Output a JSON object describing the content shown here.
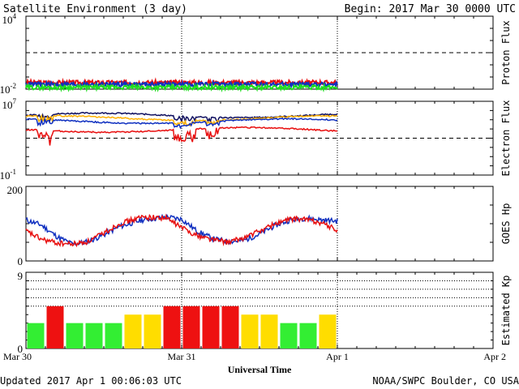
{
  "header": {
    "title": "Satellite Environment (3 day)",
    "begin": "Begin:  2017 Mar 30 0000 UTC"
  },
  "footer": {
    "updated": "Updated 2017 Apr  1 00:06:03 UTC",
    "source": "NOAA/SWPC Boulder, CO USA"
  },
  "colors": {
    "red": "#e81010",
    "blue": "#1030c0",
    "green": "#20e020",
    "orange": "#ffb000",
    "navy": "#101060",
    "kp_green": "#33ee33",
    "kp_yellow": "#ffdd00",
    "kp_red": "#ee1111"
  },
  "chart_data": [
    {
      "type": "line",
      "id": "proton",
      "ylabel": "Proton Flux",
      "ytick_labels": {
        "top": "10",
        "top_exp": "4",
        "bottom": "10",
        "bottom_exp": "-2"
      },
      "yscale": "log",
      "ylim": [
        0.01,
        10000
      ],
      "xlim_days": [
        0,
        3
      ],
      "data_end_day": 2.0,
      "threshold": 10,
      "series": [
        {
          "color": "red",
          "level": 0.035
        },
        {
          "color": "blue",
          "level": 0.025
        },
        {
          "color": "green",
          "level": 0.014
        }
      ]
    },
    {
      "type": "line",
      "id": "electron",
      "ylabel": "Electron Flux",
      "ytick_labels": {
        "top": "10",
        "top_exp": "7",
        "bottom": "10",
        "bottom_exp": "-1"
      },
      "yscale": "log",
      "ylim": [
        0.1,
        10000000
      ],
      "xlim_days": [
        0,
        3
      ],
      "data_end_day": 2.0,
      "threshold": 1000,
      "series": [
        {
          "color": "navy",
          "level": 300000
        },
        {
          "color": "orange",
          "level": 150000
        },
        {
          "color": "blue",
          "level": 70000
        },
        {
          "color": "red",
          "level": 8000
        }
      ]
    },
    {
      "type": "line",
      "id": "goes_hp",
      "ylabel": "GOES Hp",
      "ytick_labels": {
        "top": "200",
        "bottom": "0"
      },
      "ylim": [
        0,
        200
      ],
      "xlim_days": [
        0,
        3
      ],
      "data_end_day": 2.0,
      "series": [
        {
          "color": "blue",
          "points": [
            [
              0,
              110
            ],
            [
              0.1,
              96
            ],
            [
              0.2,
              65
            ],
            [
              0.3,
              45
            ],
            [
              0.4,
              52
            ],
            [
              0.5,
              70
            ],
            [
              0.6,
              92
            ],
            [
              0.75,
              110
            ],
            [
              0.9,
              118
            ],
            [
              1.0,
              112
            ],
            [
              1.1,
              80
            ],
            [
              1.2,
              60
            ],
            [
              1.3,
              52
            ],
            [
              1.4,
              55
            ],
            [
              1.5,
              72
            ],
            [
              1.6,
              95
            ],
            [
              1.7,
              110
            ],
            [
              1.8,
              115
            ],
            [
              1.9,
              110
            ],
            [
              2.0,
              107
            ]
          ]
        },
        {
          "color": "red",
          "points": [
            [
              0,
              80
            ],
            [
              0.1,
              58
            ],
            [
              0.2,
              48
            ],
            [
              0.3,
              45
            ],
            [
              0.4,
              52
            ],
            [
              0.5,
              75
            ],
            [
              0.6,
              100
            ],
            [
              0.75,
              118
            ],
            [
              0.9,
              115
            ],
            [
              1.0,
              90
            ],
            [
              1.1,
              68
            ],
            [
              1.2,
              58
            ],
            [
              1.3,
              50
            ],
            [
              1.4,
              62
            ],
            [
              1.5,
              80
            ],
            [
              1.6,
              100
            ],
            [
              1.7,
              112
            ],
            [
              1.8,
              112
            ],
            [
              1.9,
              102
            ],
            [
              2.0,
              82
            ]
          ]
        }
      ]
    },
    {
      "type": "bar",
      "id": "kp",
      "ylabel": "Estimated Kp",
      "ytick_labels": {
        "top": "9",
        "bottom": "0"
      },
      "ylim": [
        0,
        9
      ],
      "xlim_days": [
        0,
        3
      ],
      "bar_width_hours": 3,
      "values": [
        3,
        5,
        3,
        3,
        3,
        4,
        4,
        5,
        5,
        5,
        5,
        4,
        4,
        3,
        3,
        4
      ],
      "bar_colors": [
        "green",
        "red",
        "green",
        "green",
        "green",
        "yellow",
        "yellow",
        "red",
        "red",
        "red",
        "red",
        "yellow",
        "yellow",
        "green",
        "green",
        "yellow"
      ]
    }
  ],
  "xaxis": {
    "ticks": [
      {
        "day": 0,
        "label": "Mar 30"
      },
      {
        "day": 1,
        "label": "Mar 31"
      },
      {
        "day": 2,
        "label": "Apr 1"
      },
      {
        "day": 3,
        "label": "Apr 2"
      }
    ],
    "title": "Universal Time"
  }
}
